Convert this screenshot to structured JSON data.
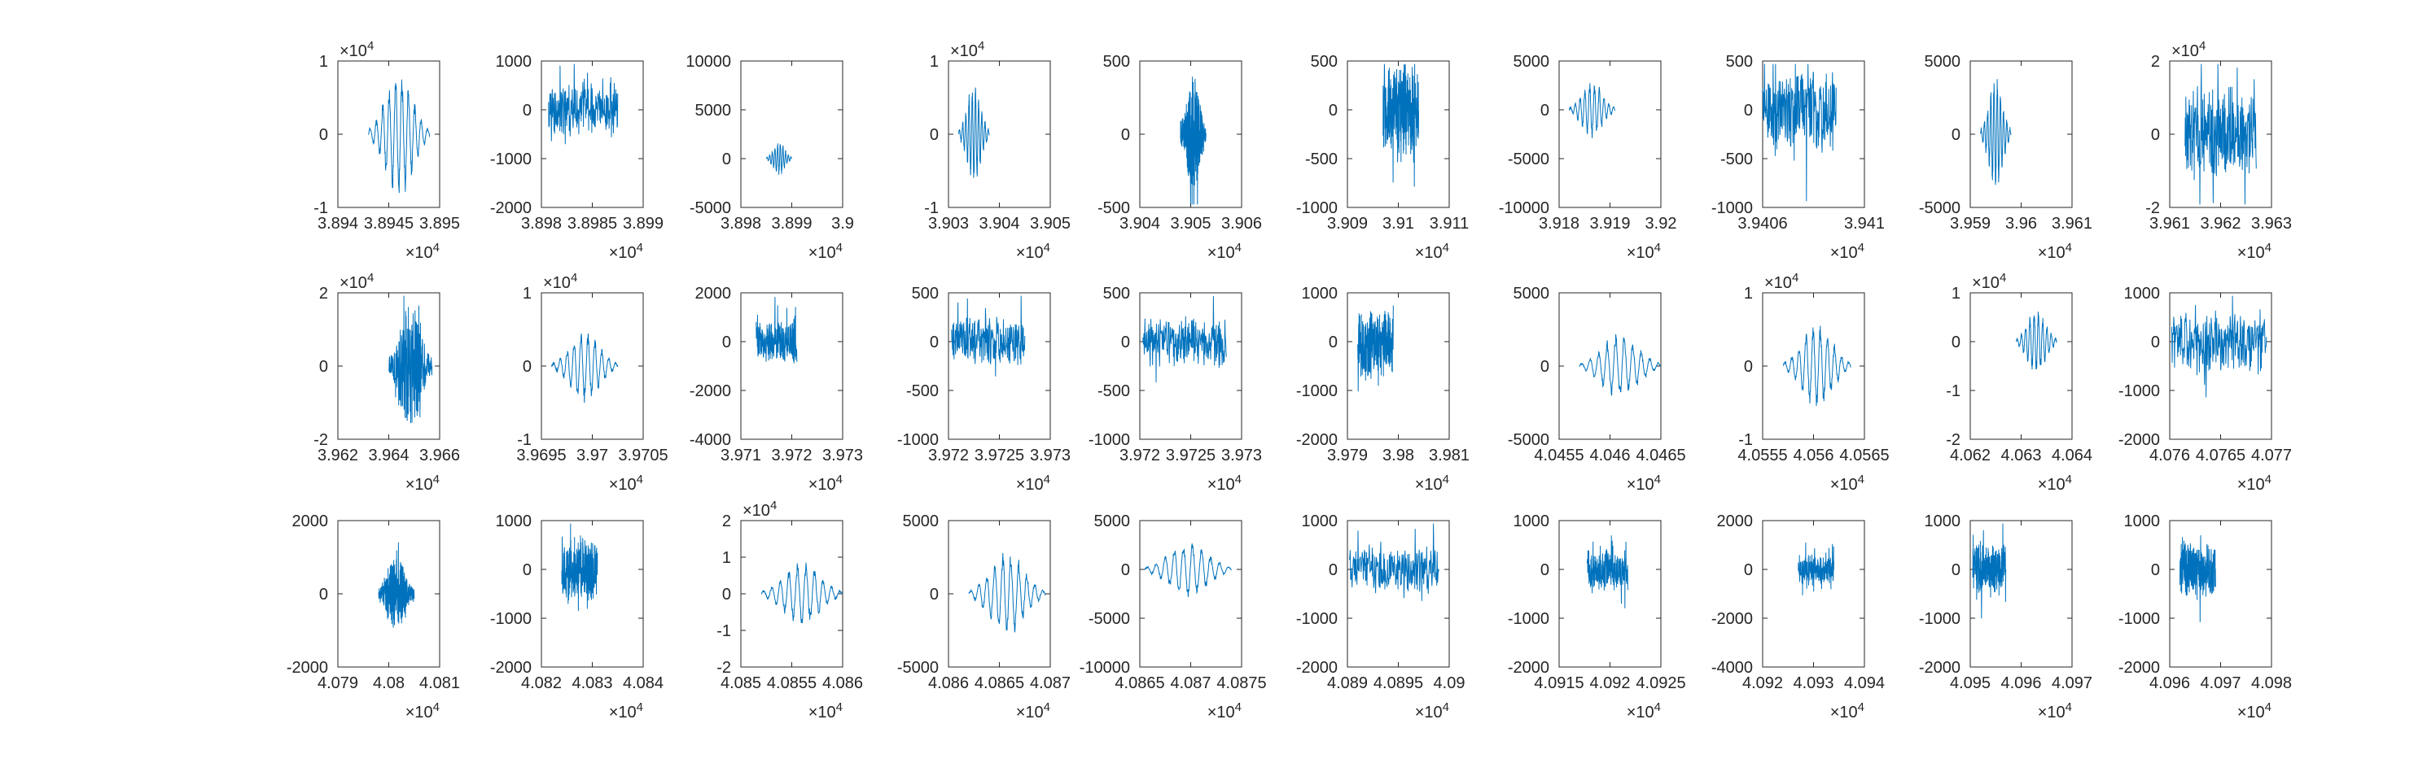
{
  "chart_data": [
    {
      "type": "line",
      "xlim": [
        38940,
        38950
      ],
      "ylim": [
        -10000,
        10000
      ],
      "xticks": [
        "3.894",
        "3.8945",
        "3.895"
      ],
      "yticks": [
        "-1",
        "0",
        "1"
      ],
      "xexp": "×10^4",
      "yexp": "×10^4",
      "signal": {
        "x_range": [
          38943,
          38949
        ],
        "amp": 0.9,
        "style": "wavelet",
        "seed": 11
      }
    },
    {
      "type": "line",
      "xlim": [
        38980,
        38990
      ],
      "ylim": [
        -2000,
        1000
      ],
      "xticks": [
        "3.898",
        "3.8985",
        "3.899"
      ],
      "yticks": [
        "-2000",
        "-1000",
        "0",
        "1000"
      ],
      "xexp": "×10^4",
      "yexp": "",
      "signal": {
        "x_range": [
          38980.7,
          38987.5
        ],
        "amp": 0.6,
        "style": "noise",
        "seed": 12
      }
    },
    {
      "type": "line",
      "xlim": [
        38980,
        39000
      ],
      "ylim": [
        -5000,
        10000
      ],
      "xticks": [
        "3.898",
        "3.899",
        "3.9"
      ],
      "yticks": [
        "-5000",
        "0",
        "5000",
        "10000"
      ],
      "xexp": "×10^4",
      "yexp": "",
      "signal": {
        "x_range": [
          38985,
          38990
        ],
        "amp": 0.35,
        "style": "wavelet",
        "seed": 13
      }
    },
    {
      "type": "line",
      "xlim": [
        39030,
        39050
      ],
      "ylim": [
        -10000,
        10000
      ],
      "xticks": [
        "3.903",
        "3.904",
        "3.905"
      ],
      "yticks": [
        "-1",
        "0",
        "1"
      ],
      "xexp": "×10^4",
      "yexp": "×10^4",
      "signal": {
        "x_range": [
          39032,
          39038
        ],
        "amp": 0.7,
        "style": "wavelet",
        "seed": 14
      }
    },
    {
      "type": "line",
      "xlim": [
        39040,
        39060
      ],
      "ylim": [
        -500,
        500
      ],
      "xticks": [
        "3.904",
        "3.905",
        "3.906"
      ],
      "yticks": [
        "-500",
        "0",
        "500"
      ],
      "xexp": "×10^4",
      "yexp": "",
      "signal": {
        "x_range": [
          39048,
          39053
        ],
        "amp": 0.8,
        "style": "burst",
        "seed": 15
      }
    },
    {
      "type": "line",
      "xlim": [
        39090,
        39110
      ],
      "ylim": [
        -1000,
        500
      ],
      "xticks": [
        "3.909",
        "3.91",
        "3.911"
      ],
      "yticks": [
        "-1000",
        "-500",
        "0",
        "500"
      ],
      "xexp": "×10^4",
      "yexp": "",
      "signal": {
        "x_range": [
          39097,
          39104
        ],
        "amp": 1.0,
        "style": "noise",
        "seed": 16
      }
    },
    {
      "type": "line",
      "xlim": [
        39180,
        39200
      ],
      "ylim": [
        -10000,
        5000
      ],
      "xticks": [
        "3.918",
        "3.919",
        "3.92"
      ],
      "yticks": [
        "-10000",
        "-5000",
        "0",
        "5000"
      ],
      "xexp": "×10^4",
      "yexp": "",
      "signal": {
        "x_range": [
          39182,
          39191
        ],
        "amp": 0.6,
        "style": "wavelet",
        "seed": 17
      }
    },
    {
      "type": "line",
      "xlim": [
        39403,
        39412
      ],
      "ylim": [
        -1000,
        500
      ],
      "xticks": [
        "3.9406",
        "3.941"
      ],
      "yticks": [
        "-1000",
        "-500",
        "0",
        "500"
      ],
      "xexp": "×10^4",
      "yexp": "",
      "signal": {
        "x_range": [
          39403,
          39409.5
        ],
        "amp": 0.9,
        "style": "noise",
        "seed": 18
      }
    },
    {
      "type": "line",
      "xlim": [
        39590,
        39610
      ],
      "ylim": [
        -5000,
        5000
      ],
      "xticks": [
        "3.959",
        "3.96",
        "3.961"
      ],
      "yticks": [
        "-5000",
        "0",
        "5000"
      ],
      "xexp": "×10^4",
      "yexp": "",
      "signal": {
        "x_range": [
          39592,
          39598
        ],
        "amp": 0.8,
        "style": "wavelet",
        "seed": 19
      }
    },
    {
      "type": "line",
      "xlim": [
        39610,
        39630
      ],
      "ylim": [
        -20000,
        20000
      ],
      "xticks": [
        "3.961",
        "3.962",
        "3.963"
      ],
      "yticks": [
        "-2",
        "0",
        "2"
      ],
      "xexp": "×10^4",
      "yexp": "×10^4",
      "signal": {
        "x_range": [
          39613,
          39627
        ],
        "amp": 0.7,
        "style": "noise",
        "seed": 20
      }
    },
    {
      "type": "line",
      "xlim": [
        39620,
        39660
      ],
      "ylim": [
        -20000,
        20000
      ],
      "xticks": [
        "3.962",
        "3.964",
        "3.966"
      ],
      "yticks": [
        "-2",
        "0",
        "2"
      ],
      "xexp": "×10^4",
      "yexp": "×10^4",
      "signal": {
        "x_range": [
          39640,
          39657
        ],
        "amp": 0.85,
        "style": "burst",
        "seed": 21
      }
    },
    {
      "type": "line",
      "xlim": [
        39690,
        39710
      ],
      "ylim": [
        -10000,
        10000
      ],
      "xticks": [
        "3.9695",
        "3.97",
        "3.9705"
      ],
      "yticks": [
        "-1",
        "0",
        "1"
      ],
      "xexp": "×10^4",
      "yexp": "×10^4",
      "signal": {
        "x_range": [
          39692,
          39705
        ],
        "amp": 0.5,
        "style": "wavelet",
        "seed": 22
      }
    },
    {
      "type": "line",
      "xlim": [
        39710,
        39730
      ],
      "ylim": [
        -4000,
        2000
      ],
      "xticks": [
        "3.971",
        "3.972",
        "3.973"
      ],
      "yticks": [
        "-4000",
        "-2000",
        "0",
        "2000"
      ],
      "xexp": "×10^4",
      "yexp": "",
      "signal": {
        "x_range": [
          39713,
          39721
        ],
        "amp": 0.5,
        "style": "noise",
        "seed": 23
      }
    },
    {
      "type": "line",
      "xlim": [
        39720,
        39730
      ],
      "ylim": [
        -1000,
        500
      ],
      "xticks": [
        "3.972",
        "3.9725",
        "3.973"
      ],
      "yticks": [
        "-1000",
        "-500",
        "0",
        "500"
      ],
      "xexp": "×10^4",
      "yexp": "",
      "signal": {
        "x_range": [
          39720.3,
          39727.5
        ],
        "amp": 0.55,
        "style": "noise",
        "seed": 24
      }
    },
    {
      "type": "line",
      "xlim": [
        39720,
        39730
      ],
      "ylim": [
        -1000,
        500
      ],
      "xticks": [
        "3.972",
        "3.9725",
        "3.973"
      ],
      "yticks": [
        "-1000",
        "-500",
        "0",
        "500"
      ],
      "xexp": "×10^4",
      "yexp": "",
      "signal": {
        "x_range": [
          39720.3,
          39728.5
        ],
        "amp": 0.55,
        "style": "noise",
        "seed": 25
      }
    },
    {
      "type": "line",
      "xlim": [
        39790,
        39810
      ],
      "ylim": [
        -2000,
        1000
      ],
      "xticks": [
        "3.979",
        "3.98",
        "3.981"
      ],
      "yticks": [
        "-2000",
        "-1000",
        "0",
        "1000"
      ],
      "xexp": "×10^4",
      "yexp": "",
      "signal": {
        "x_range": [
          39792,
          39799
        ],
        "amp": 0.8,
        "style": "noise",
        "seed": 26
      }
    },
    {
      "type": "line",
      "xlim": [
        40455,
        40470
      ],
      "ylim": [
        -5000,
        5000
      ],
      "xticks": [
        "4.0455",
        "4.046",
        "4.0465"
      ],
      "yticks": [
        "-5000",
        "0",
        "5000"
      ],
      "xexp": "×10^4",
      "yexp": "",
      "signal": {
        "x_range": [
          40458,
          40470
        ],
        "amp": 0.45,
        "style": "wavelet",
        "seed": 27
      }
    },
    {
      "type": "line",
      "xlim": [
        40555,
        40570
      ],
      "ylim": [
        -10000,
        10000
      ],
      "xticks": [
        "4.0555",
        "4.056",
        "4.0565"
      ],
      "yticks": [
        "-1",
        "0",
        "1"
      ],
      "xexp": "×10^4",
      "yexp": "×10^4",
      "signal": {
        "x_range": [
          40558,
          40568
        ],
        "amp": 0.6,
        "style": "wavelet",
        "seed": 28
      }
    },
    {
      "type": "line",
      "xlim": [
        40620,
        40640
      ],
      "ylim": [
        -20000,
        10000
      ],
      "xticks": [
        "4.062",
        "4.063",
        "4.064"
      ],
      "yticks": [
        "-2",
        "-1",
        "0",
        "1"
      ],
      "xexp": "×10^4",
      "yexp": "×10^4",
      "signal": {
        "x_range": [
          40629,
          40637
        ],
        "amp": 0.7,
        "style": "wavelet",
        "seed": 29
      }
    },
    {
      "type": "line",
      "xlim": [
        40760,
        40770
      ],
      "ylim": [
        -2000,
        1000
      ],
      "xticks": [
        "4.076",
        "4.0765",
        "4.077"
      ],
      "yticks": [
        "-2000",
        "-1000",
        "0",
        "1000"
      ],
      "xexp": "×10^4",
      "yexp": "",
      "signal": {
        "x_range": [
          40760.2,
          40769.5
        ],
        "amp": 0.75,
        "style": "noise",
        "seed": 30
      }
    },
    {
      "type": "line",
      "xlim": [
        40790,
        40810
      ],
      "ylim": [
        -2000,
        2000
      ],
      "xticks": [
        "4.079",
        "4.08",
        "4.081"
      ],
      "yticks": [
        "-2000",
        "0",
        "2000"
      ],
      "xexp": "×10^4",
      "yexp": "",
      "signal": {
        "x_range": [
          40798,
          40805
        ],
        "amp": 0.5,
        "style": "burst",
        "seed": 31
      }
    },
    {
      "type": "line",
      "xlim": [
        40820,
        40840
      ],
      "ylim": [
        -2000,
        1000
      ],
      "xticks": [
        "4.082",
        "4.083",
        "4.084"
      ],
      "yticks": [
        "-2000",
        "-1000",
        "0",
        "1000"
      ],
      "xexp": "×10^4",
      "yexp": "",
      "signal": {
        "x_range": [
          40824,
          40831
        ],
        "amp": 0.7,
        "style": "noise",
        "seed": 32
      }
    },
    {
      "type": "line",
      "xlim": [
        40850,
        40860
      ],
      "ylim": [
        -20000,
        20000
      ],
      "xticks": [
        "4.085",
        "4.0855",
        "4.086"
      ],
      "yticks": [
        "-2",
        "-1",
        "0",
        "1",
        "2"
      ],
      "xexp": "×10^4",
      "yexp": "×10^4",
      "signal": {
        "x_range": [
          40852,
          40860
        ],
        "amp": 0.45,
        "style": "wavelet",
        "seed": 33
      }
    },
    {
      "type": "line",
      "xlim": [
        40860,
        40870
      ],
      "ylim": [
        -5000,
        5000
      ],
      "xticks": [
        "4.086",
        "4.0865",
        "4.087"
      ],
      "yticks": [
        "-5000",
        "0",
        "5000"
      ],
      "xexp": "×10^4",
      "yexp": "",
      "signal": {
        "x_range": [
          40862,
          40869.5
        ],
        "amp": 0.6,
        "style": "wavelet",
        "seed": 34
      }
    },
    {
      "type": "line",
      "xlim": [
        40865,
        40875
      ],
      "ylim": [
        -10000,
        5000
      ],
      "xticks": [
        "4.0865",
        "4.087",
        "4.0875"
      ],
      "yticks": [
        "-10000",
        "-5000",
        "0",
        "5000"
      ],
      "xexp": "×10^4",
      "yexp": "",
      "signal": {
        "x_range": [
          40865.5,
          40874
        ],
        "amp": 0.6,
        "style": "wavelet",
        "seed": 35
      }
    },
    {
      "type": "line",
      "xlim": [
        40890,
        40900
      ],
      "ylim": [
        -2000,
        1000
      ],
      "xticks": [
        "4.089",
        "4.0895",
        "4.09"
      ],
      "yticks": [
        "-2000",
        "-1000",
        "0",
        "1000"
      ],
      "xexp": "×10^4",
      "yexp": "",
      "signal": {
        "x_range": [
          40890.2,
          40899
        ],
        "amp": 0.55,
        "style": "noise",
        "seed": 36
      }
    },
    {
      "type": "line",
      "xlim": [
        40910,
        40930
      ],
      "ylim": [
        -2000,
        1000
      ],
      "xticks": [
        "4.0915",
        "4.092",
        "4.0925"
      ],
      "yticks": [
        "-2000",
        "-1000",
        "0",
        "1000"
      ],
      "xexp": "×10^4",
      "yexp": "",
      "signal": {
        "x_range": [
          40915.5,
          40923.5
        ],
        "amp": 0.45,
        "style": "noise",
        "seed": 37
      }
    },
    {
      "type": "line",
      "xlim": [
        40920,
        40940
      ],
      "ylim": [
        -4000,
        2000
      ],
      "xticks": [
        "4.092",
        "4.093",
        "4.094"
      ],
      "yticks": [
        "-4000",
        "-2000",
        "0",
        "2000"
      ],
      "xexp": "×10^4",
      "yexp": "",
      "signal": {
        "x_range": [
          40927,
          40934
        ],
        "amp": 0.35,
        "style": "noise",
        "seed": 38
      }
    },
    {
      "type": "line",
      "xlim": [
        40950,
        40970
      ],
      "ylim": [
        -2000,
        1000
      ],
      "xticks": [
        "4.095",
        "4.096",
        "4.097"
      ],
      "yticks": [
        "-2000",
        "-1000",
        "0",
        "1000"
      ],
      "xexp": "×10^4",
      "yexp": "",
      "signal": {
        "x_range": [
          40950.5,
          40957
        ],
        "amp": 0.55,
        "style": "noise",
        "seed": 39
      }
    },
    {
      "type": "line",
      "xlim": [
        40960,
        40980
      ],
      "ylim": [
        -2000,
        1000
      ],
      "xticks": [
        "4.096",
        "4.097",
        "4.098"
      ],
      "yticks": [
        "-2000",
        "-1000",
        "0",
        "1000"
      ],
      "xexp": "×10^4",
      "yexp": "",
      "signal": {
        "x_range": [
          40962,
          40969
        ],
        "amp": 0.65,
        "style": "noise",
        "seed": 40
      }
    }
  ],
  "colors": {
    "line": "#0072BD",
    "axis": "#262626",
    "background": "#ffffff"
  }
}
